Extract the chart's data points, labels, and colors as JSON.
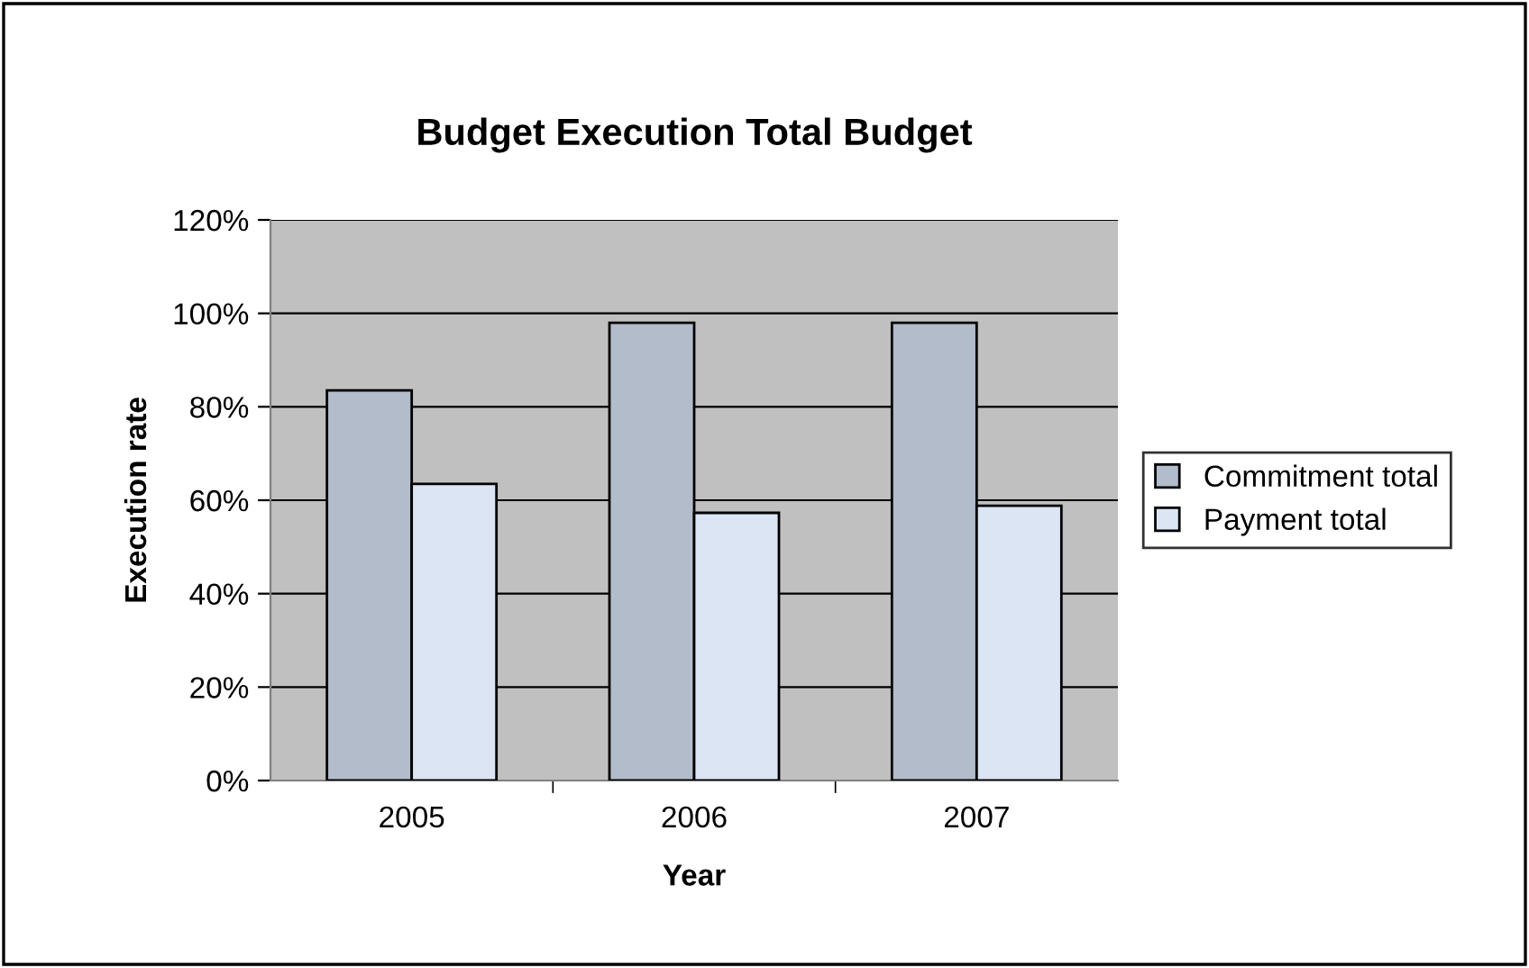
{
  "chart_data": {
    "type": "bar",
    "title": "Budget Execution Total Budget",
    "xlabel": "Year",
    "ylabel": "Execution rate",
    "categories": [
      "2005",
      "2006",
      "2007"
    ],
    "series": [
      {
        "name": "Commitment total",
        "color": "#b3bccb",
        "values": [
          83.5,
          98,
          98
        ]
      },
      {
        "name": "Payment total",
        "color": "#dce5f3",
        "values": [
          63.5,
          57.3,
          58.8
        ]
      }
    ],
    "ylim": [
      0,
      120
    ],
    "yticks": [
      {
        "value": 0,
        "label": "0%"
      },
      {
        "value": 20,
        "label": "20%"
      },
      {
        "value": 40,
        "label": "40%"
      },
      {
        "value": 60,
        "label": "60%"
      },
      {
        "value": 80,
        "label": "80%"
      },
      {
        "value": 100,
        "label": "100%"
      },
      {
        "value": 120,
        "label": "120%"
      }
    ],
    "grid": "y",
    "legend": "right"
  }
}
